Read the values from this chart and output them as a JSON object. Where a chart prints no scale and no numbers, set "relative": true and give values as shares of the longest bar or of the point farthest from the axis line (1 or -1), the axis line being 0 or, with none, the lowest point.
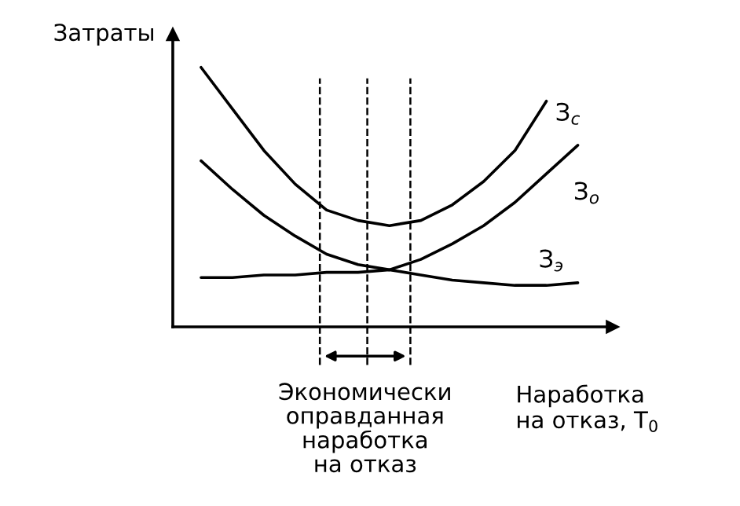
{
  "chart_data": {
    "type": "line",
    "relative": true,
    "ylabel": "Затраты",
    "xlabel": "Наработка\nна отказ, T$_{0}$",
    "categories": [
      null,
      null,
      null,
      null,
      null,
      null,
      null,
      null,
      null,
      null,
      null,
      null,
      null
    ],
    "series": [
      {
        "name": "З$_{с}$",
        "color": "#000000",
        "values": [
          1,
          0.84,
          0.68,
          0.55,
          0.45,
          0.41,
          0.39,
          0.41,
          0.47,
          0.56,
          0.68,
          0.87,
          null
        ]
      },
      {
        "name": "З$_{о}$",
        "color": "#000000",
        "values": [
          0.64,
          0.53,
          0.43,
          0.35,
          0.28,
          0.24,
          0.22,
          0.26,
          0.32,
          0.39,
          0.48,
          0.59,
          0.7
        ]
      },
      {
        "name": "З$_{э}$",
        "color": "#000000",
        "values": [
          0.19,
          0.19,
          0.2,
          0.2,
          0.21,
          0.21,
          0.22,
          0.2,
          0.18,
          0.17,
          0.16,
          0.16,
          0.17
        ]
      }
    ],
    "annotations": [
      "Экономически\nоправданная\nнаработка\nна отказ"
    ],
    "legend": false,
    "line_style": "solid",
    "marker": "none"
  }
}
